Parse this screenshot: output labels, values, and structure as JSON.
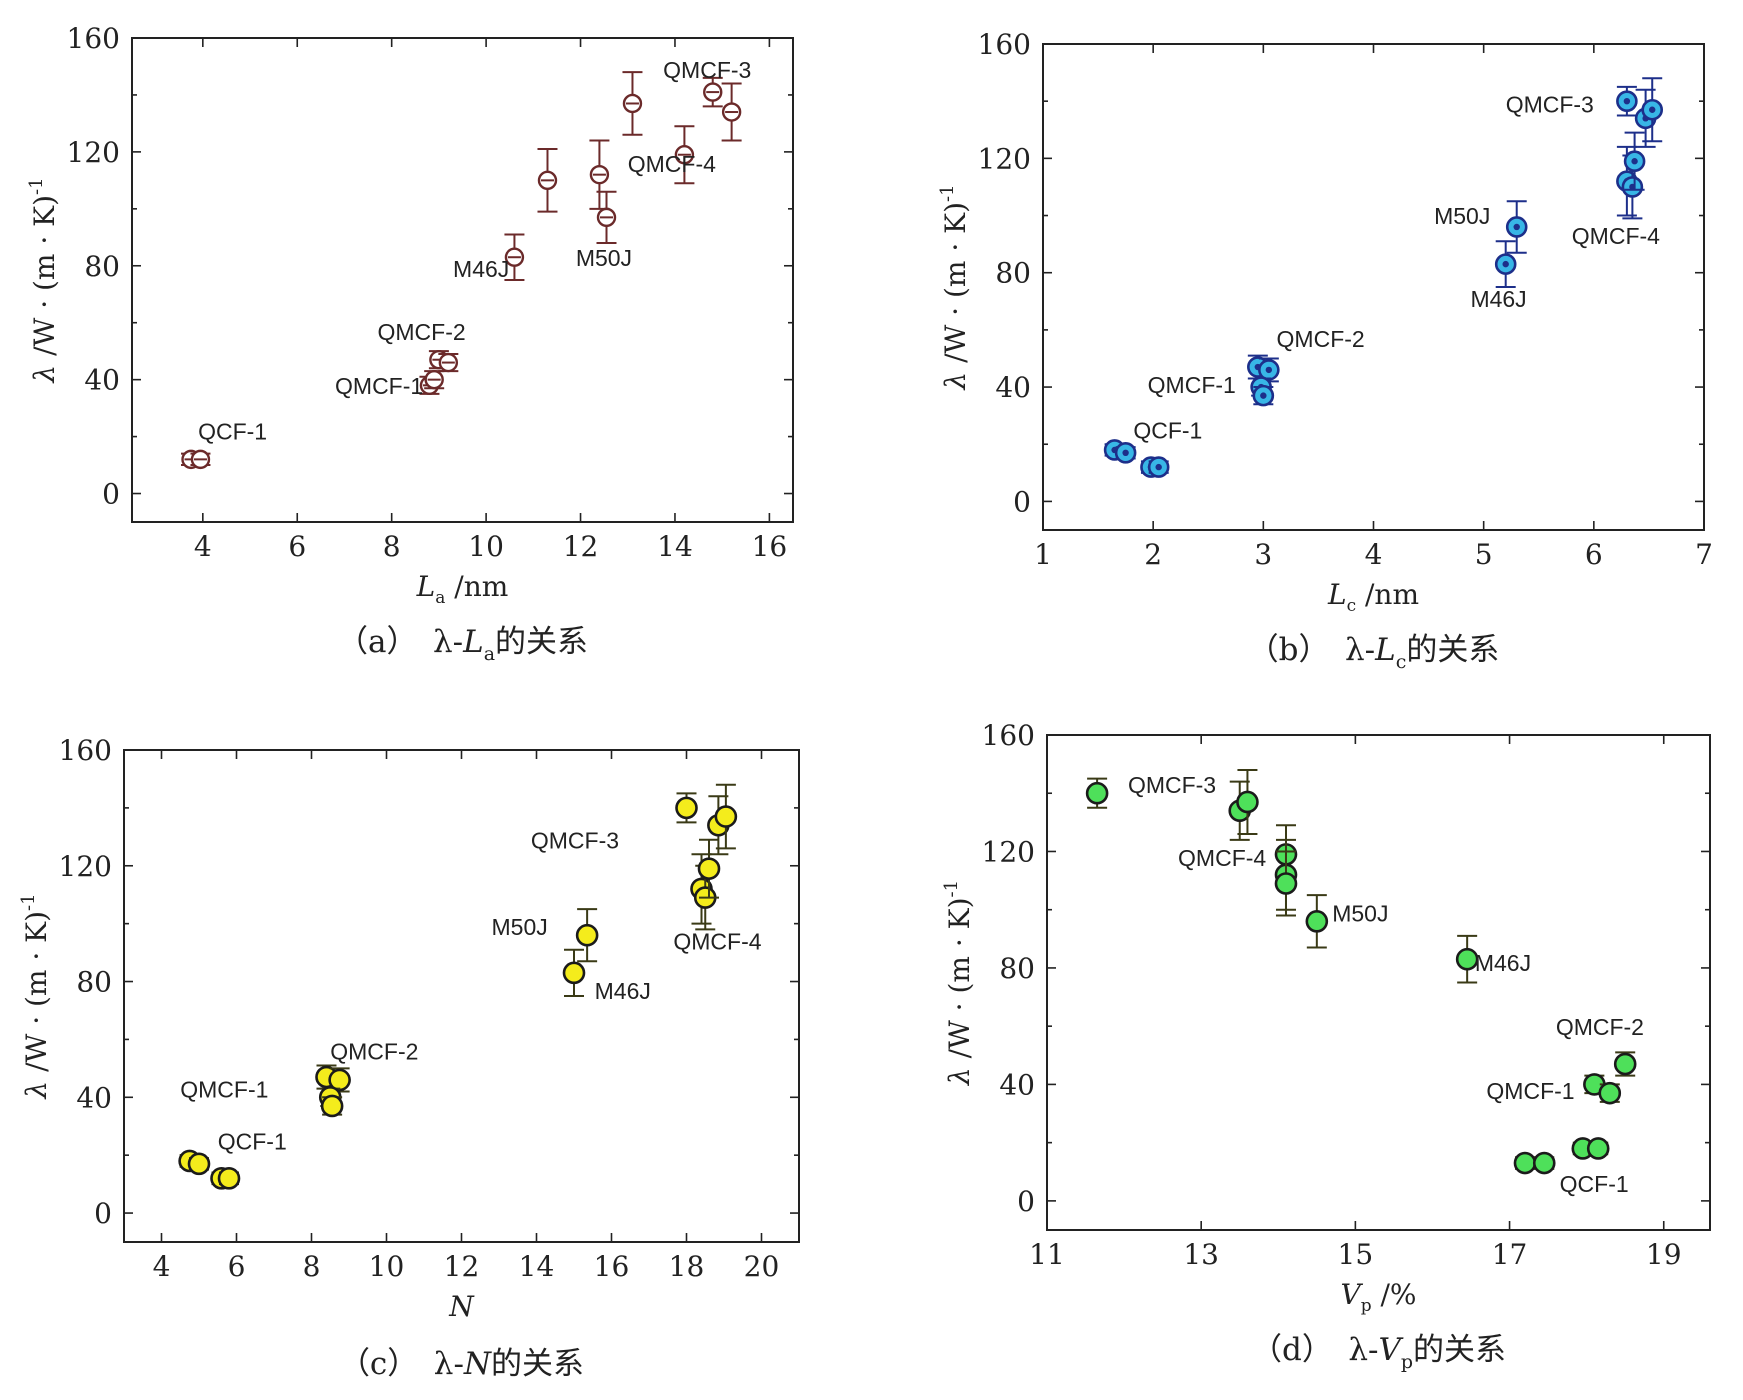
{
  "colors": {
    "a": {
      "stroke": "#6b2a2a",
      "fill": "none"
    },
    "b": {
      "stroke": "#1d2f8a",
      "fill": "#38b6e6"
    },
    "c": {
      "stroke": "#1b1b1b",
      "fill": "#f4ec1c"
    },
    "d": {
      "stroke": "#1b1b1b",
      "fill": "#4ee05a"
    }
  },
  "chart_data": [
    {
      "id": "a",
      "type": "scatter",
      "caption": {
        "prefix": "（a）　λ-",
        "var": "L",
        "sub": "a",
        "suffix": "的关系"
      },
      "xlabel": {
        "var": "L",
        "sub": "a",
        "unit": " /nm"
      },
      "ylabel": {
        "main": "λ /W · (m · K)",
        "sup": "-1"
      },
      "xlim": [
        2.5,
        16.5
      ],
      "ylim": [
        -10,
        160
      ],
      "xticks": [
        4,
        6,
        8,
        10,
        12,
        14,
        16
      ],
      "yticks": [
        0,
        40,
        80,
        120,
        160
      ],
      "points": [
        {
          "x": 3.75,
          "y": 12,
          "err": 2
        },
        {
          "x": 3.95,
          "y": 12,
          "err": 2
        },
        {
          "x": 8.8,
          "y": 38,
          "err": 3
        },
        {
          "x": 8.9,
          "y": 40,
          "err": 3
        },
        {
          "x": 9.0,
          "y": 47,
          "err": 3
        },
        {
          "x": 9.2,
          "y": 46,
          "err": 3
        },
        {
          "x": 10.6,
          "y": 83,
          "err": 8
        },
        {
          "x": 11.3,
          "y": 110,
          "err": 11
        },
        {
          "x": 12.4,
          "y": 112,
          "err": 12
        },
        {
          "x": 12.55,
          "y": 97,
          "err": 9
        },
        {
          "x": 13.1,
          "y": 137,
          "err": 11
        },
        {
          "x": 14.2,
          "y": 119,
          "err": 10
        },
        {
          "x": 14.8,
          "y": 141,
          "err": 5
        },
        {
          "x": 15.2,
          "y": 134,
          "err": 10
        }
      ],
      "labels": [
        {
          "text": "QCF-1",
          "x": 3.9,
          "y": 19
        },
        {
          "text": "QMCF-2",
          "x": 7.7,
          "y": 54
        },
        {
          "text": "QMCF-1",
          "x": 6.8,
          "y": 35
        },
        {
          "text": "M46J",
          "x": 9.3,
          "y": 76
        },
        {
          "text": "M50J",
          "x": 11.9,
          "y": 80
        },
        {
          "text": "QMCF-4",
          "x": 13.0,
          "y": 113
        },
        {
          "text": "QMCF-3",
          "x": 13.75,
          "y": 146
        }
      ]
    },
    {
      "id": "b",
      "type": "scatter",
      "caption": {
        "prefix": "（b）　λ-",
        "var": "L",
        "sub": "c",
        "suffix": "的关系"
      },
      "xlabel": {
        "var": "L",
        "sub": "c",
        "unit": " /nm"
      },
      "ylabel": {
        "main": "λ /W · (m · K)",
        "sup": "-1"
      },
      "xlim": [
        1,
        7
      ],
      "ylim": [
        -10,
        160
      ],
      "xticks": [
        1,
        2,
        3,
        4,
        5,
        6,
        7
      ],
      "yticks": [
        0,
        40,
        80,
        120,
        160
      ],
      "points": [
        {
          "x": 1.65,
          "y": 18,
          "err": 2
        },
        {
          "x": 1.75,
          "y": 17,
          "err": 2
        },
        {
          "x": 1.98,
          "y": 12,
          "err": 2
        },
        {
          "x": 2.05,
          "y": 12,
          "err": 2
        },
        {
          "x": 2.95,
          "y": 47,
          "err": 4
        },
        {
          "x": 3.05,
          "y": 46,
          "err": 4
        },
        {
          "x": 2.98,
          "y": 40,
          "err": 3
        },
        {
          "x": 3.0,
          "y": 37,
          "err": 3
        },
        {
          "x": 5.2,
          "y": 83,
          "err": 8
        },
        {
          "x": 5.3,
          "y": 96,
          "err": 9
        },
        {
          "x": 6.3,
          "y": 140,
          "err": 5
        },
        {
          "x": 6.3,
          "y": 112,
          "err": 12
        },
        {
          "x": 6.35,
          "y": 110,
          "err": 11
        },
        {
          "x": 6.37,
          "y": 119,
          "err": 10
        },
        {
          "x": 6.47,
          "y": 134,
          "err": 10
        },
        {
          "x": 6.53,
          "y": 137,
          "err": 11
        }
      ],
      "labels": [
        {
          "text": "QCF-1",
          "x": 1.82,
          "y": 22
        },
        {
          "text": "QMCF-1",
          "x": 1.95,
          "y": 38
        },
        {
          "text": "QMCF-2",
          "x": 3.12,
          "y": 54
        },
        {
          "text": "M50J",
          "x": 4.55,
          "y": 97
        },
        {
          "text": "M46J",
          "x": 4.88,
          "y": 68
        },
        {
          "text": "QMCF-3",
          "x": 5.2,
          "y": 136
        },
        {
          "text": "QMCF-4",
          "x": 5.8,
          "y": 90
        }
      ]
    },
    {
      "id": "c",
      "type": "scatter",
      "caption": {
        "prefix": "（c）　λ-",
        "var": "N",
        "sub": "",
        "suffix": "的关系"
      },
      "xlabel": {
        "var": "N",
        "sub": "",
        "unit": ""
      },
      "ylabel": {
        "main": "λ /W · (m · K)",
        "sup": "-1"
      },
      "xlim": [
        3,
        21
      ],
      "ylim": [
        -10,
        160
      ],
      "xticks": [
        4,
        6,
        8,
        10,
        12,
        14,
        16,
        18,
        20
      ],
      "yticks": [
        0,
        40,
        80,
        120,
        160
      ],
      "points": [
        {
          "x": 4.75,
          "y": 18,
          "err": 2
        },
        {
          "x": 5.0,
          "y": 17,
          "err": 2
        },
        {
          "x": 5.6,
          "y": 12,
          "err": 2
        },
        {
          "x": 5.8,
          "y": 12,
          "err": 2
        },
        {
          "x": 8.4,
          "y": 47,
          "err": 4
        },
        {
          "x": 8.75,
          "y": 46,
          "err": 4
        },
        {
          "x": 8.5,
          "y": 40,
          "err": 3
        },
        {
          "x": 8.55,
          "y": 37,
          "err": 3
        },
        {
          "x": 15.0,
          "y": 83,
          "err": 8
        },
        {
          "x": 15.35,
          "y": 96,
          "err": 9
        },
        {
          "x": 18.0,
          "y": 140,
          "err": 5
        },
        {
          "x": 18.4,
          "y": 112,
          "err": 12
        },
        {
          "x": 18.5,
          "y": 109,
          "err": 11
        },
        {
          "x": 18.6,
          "y": 119,
          "err": 10
        },
        {
          "x": 18.85,
          "y": 134,
          "err": 10
        },
        {
          "x": 19.05,
          "y": 137,
          "err": 11
        }
      ],
      "labels": [
        {
          "text": "QCF-1",
          "x": 5.5,
          "y": 22
        },
        {
          "text": "QMCF-1",
          "x": 4.5,
          "y": 40
        },
        {
          "text": "QMCF-2",
          "x": 8.5,
          "y": 53
        },
        {
          "text": "M50J",
          "x": 12.8,
          "y": 96
        },
        {
          "text": "M46J",
          "x": 15.55,
          "y": 74
        },
        {
          "text": "QMCF-3",
          "x": 13.85,
          "y": 126
        },
        {
          "text": "QMCF-4",
          "x": 17.65,
          "y": 91
        }
      ]
    },
    {
      "id": "d",
      "type": "scatter",
      "caption": {
        "prefix": "（d）　λ-",
        "var": "V",
        "sub": "p",
        "suffix": "的关系"
      },
      "xlabel": {
        "var": "V",
        "sub": "p",
        "unit": " /%"
      },
      "ylabel": {
        "main": "λ /W · (m · K)",
        "sup": "-1"
      },
      "xlim": [
        11,
        19.6
      ],
      "ylim": [
        -10,
        160
      ],
      "xticks": [
        11,
        13,
        15,
        17,
        19
      ],
      "yticks": [
        0,
        40,
        80,
        120,
        160
      ],
      "points": [
        {
          "x": 11.65,
          "y": 140,
          "err": 5
        },
        {
          "x": 13.5,
          "y": 134,
          "err": 10
        },
        {
          "x": 13.6,
          "y": 137,
          "err": 11
        },
        {
          "x": 14.1,
          "y": 119,
          "err": 10
        },
        {
          "x": 14.1,
          "y": 112,
          "err": 12
        },
        {
          "x": 14.1,
          "y": 109,
          "err": 11
        },
        {
          "x": 14.5,
          "y": 96,
          "err": 9
        },
        {
          "x": 16.45,
          "y": 83,
          "err": 8
        },
        {
          "x": 17.2,
          "y": 13,
          "err": 2
        },
        {
          "x": 17.45,
          "y": 13,
          "err": 2
        },
        {
          "x": 17.95,
          "y": 18,
          "err": 2
        },
        {
          "x": 18.15,
          "y": 18,
          "err": 2
        },
        {
          "x": 18.1,
          "y": 40,
          "err": 3
        },
        {
          "x": 18.3,
          "y": 37,
          "err": 3
        },
        {
          "x": 18.5,
          "y": 47,
          "err": 4
        }
      ],
      "labels": [
        {
          "text": "QMCF-3",
          "x": 12.05,
          "y": 140
        },
        {
          "text": "QMCF-4",
          "x": 12.7,
          "y": 115
        },
        {
          "text": "M50J",
          "x": 14.7,
          "y": 96
        },
        {
          "text": "M46J",
          "x": 16.55,
          "y": 79
        },
        {
          "text": "QMCF-2",
          "x": 17.6,
          "y": 57
        },
        {
          "text": "QMCF-1",
          "x": 16.7,
          "y": 35
        },
        {
          "text": "QCF-1",
          "x": 17.65,
          "y": 3
        }
      ]
    }
  ]
}
